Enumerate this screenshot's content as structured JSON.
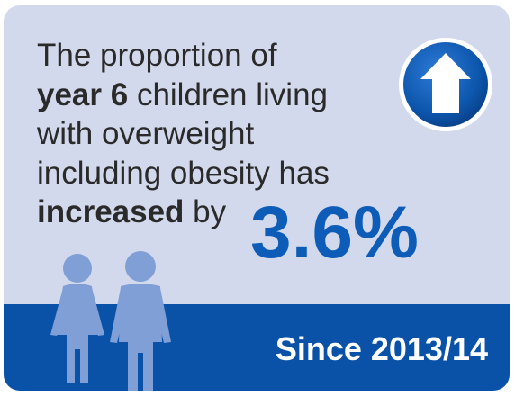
{
  "headline": {
    "line1": "The proportion of",
    "line2_bold": "year 6",
    "line2_rest": " children living",
    "line3": "with overweight",
    "line4": "including obesity has",
    "line5_bold": "increased",
    "line5_rest": " by"
  },
  "figure": "3.6%",
  "since": "Since 2013/14",
  "icons": {
    "trend": "arrow-up-circle-icon",
    "children": "children-silhouette-icon"
  },
  "colors": {
    "card_background": "#d2d9ec",
    "band": "#0a51a8",
    "accent_text": "#0d5cb8",
    "body_text": "#2a2a2a",
    "figure_silhouette": "#7f9fd6"
  }
}
